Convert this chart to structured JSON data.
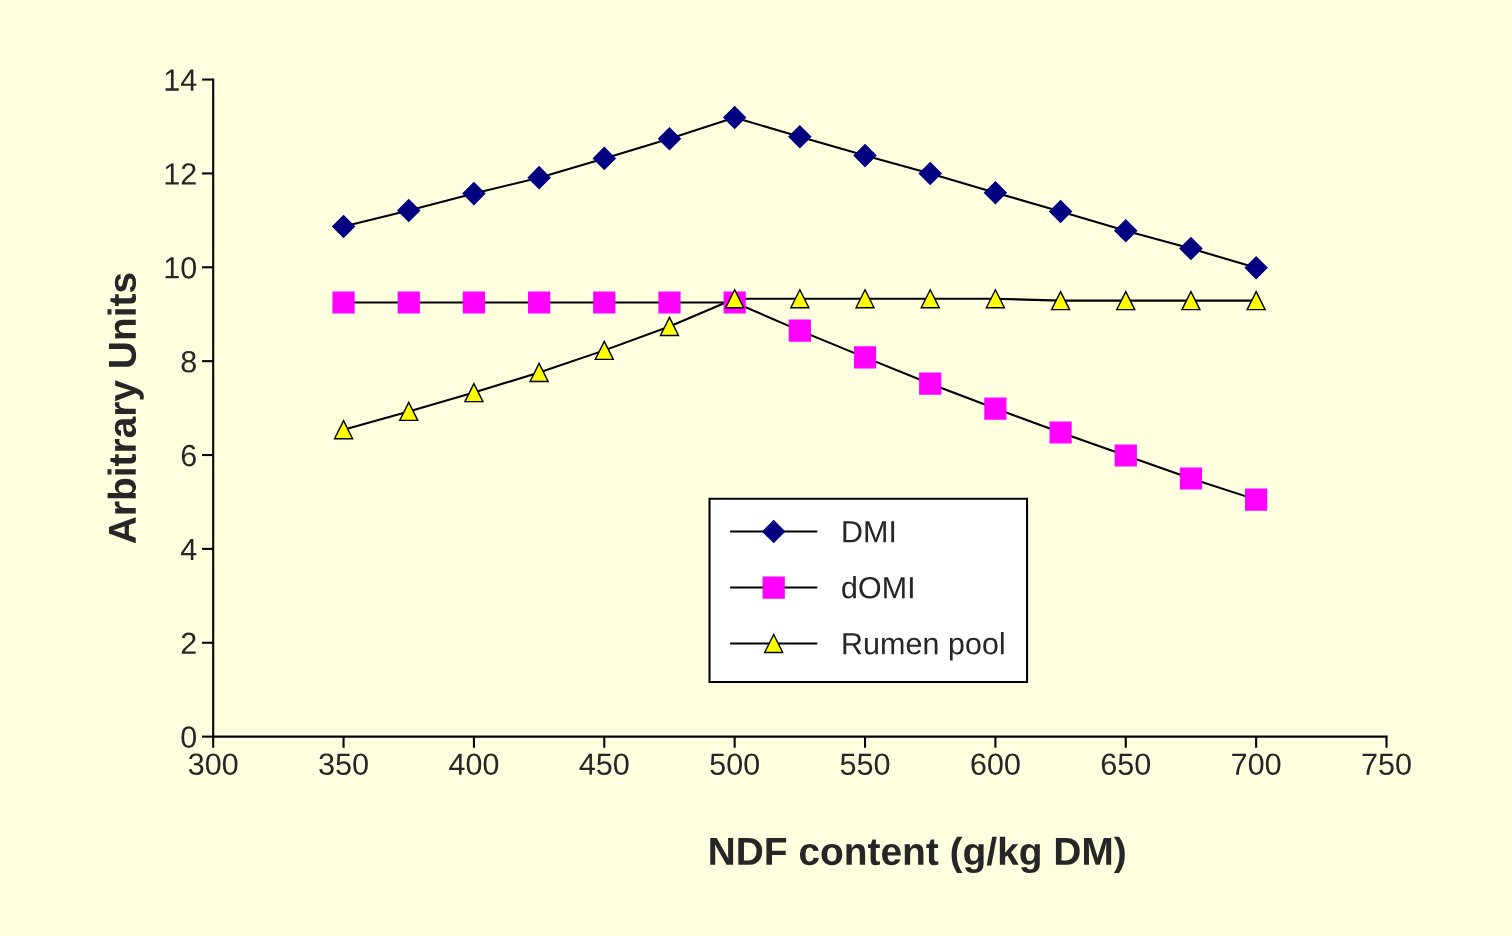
{
  "chart_data": {
    "type": "line",
    "xlabel": "NDF content (g/kg DM)",
    "ylabel": "Arbitrary Units",
    "x": [
      350,
      375,
      400,
      425,
      450,
      475,
      500,
      525,
      550,
      575,
      600,
      625,
      650,
      675,
      700
    ],
    "series": [
      {
        "name": "DMI",
        "color": "#000080",
        "marker": "diamond",
        "values": [
          10.87,
          11.21,
          11.57,
          11.91,
          12.32,
          12.74,
          13.19,
          12.78,
          12.38,
          12.0,
          11.59,
          11.19,
          10.78,
          10.4,
          9.99
        ]
      },
      {
        "name": "dOMI",
        "color": "#ff00ff",
        "marker": "square",
        "values": [
          9.25,
          9.25,
          9.25,
          9.25,
          9.25,
          9.25,
          9.25,
          8.65,
          8.08,
          7.52,
          6.99,
          6.48,
          5.99,
          5.5,
          5.05
        ]
      },
      {
        "name": "Rumen pool",
        "color": "#ffff00",
        "marker": "triangle",
        "values": [
          6.54,
          6.93,
          7.33,
          7.76,
          8.23,
          8.74,
          9.33,
          9.33,
          9.33,
          9.33,
          9.33,
          9.29,
          9.29,
          9.29,
          9.29
        ]
      }
    ],
    "xlim": [
      300,
      750
    ],
    "xticks": [
      300,
      350,
      400,
      450,
      500,
      550,
      600,
      650,
      700,
      750
    ],
    "ylim": [
      0,
      14
    ],
    "yticks": [
      0,
      2,
      4,
      6,
      8,
      10,
      12,
      14
    ],
    "grid": false,
    "legend": "bottom right"
  }
}
